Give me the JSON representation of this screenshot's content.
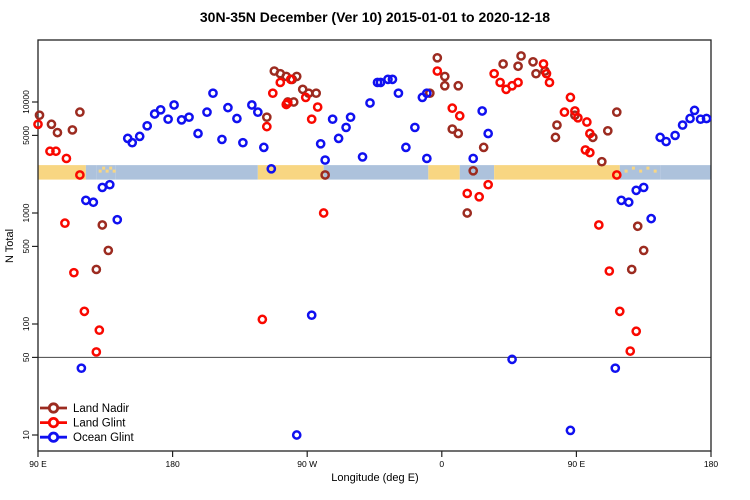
{
  "chart_data": {
    "type": "scatter",
    "title": "30N-35N December (Ver 10)   2015-01-01 to 2020-12-18",
    "xlabel": "Longitude (deg E)",
    "ylabel": "N Total",
    "x_axis": {
      "range_deg": [
        90,
        540
      ],
      "wraps_longitude": true,
      "ticks": [
        {
          "label": "90 E",
          "lon": 90
        },
        {
          "label": "180",
          "lon": 180
        },
        {
          "label": "90 W",
          "lon": 270
        },
        {
          "label": "0",
          "lon": 360
        },
        {
          "label": "90 E",
          "lon": 450
        },
        {
          "label": "180",
          "lon": 540
        }
      ]
    },
    "y_axis": {
      "scale": "log",
      "ticks": [
        {
          "label": "10000",
          "value": 10000
        },
        {
          "label": "5000",
          "value": 5000
        },
        {
          "label": "1000",
          "value": 1000
        },
        {
          "label": "500",
          "value": 500
        },
        {
          "label": "100",
          "value": 100
        },
        {
          "label": "50",
          "value": 50
        },
        {
          "label": "10",
          "value": 10
        }
      ]
    },
    "reference_line": {
      "value": 50,
      "color": "#444444"
    },
    "map_strip": {
      "value_top": 2700,
      "value_bottom": 2000,
      "land_color": "#F8D682",
      "ocean_color": "#ADC2DC",
      "segments": [
        {
          "from": 90,
          "to": 122,
          "surface": "land"
        },
        {
          "from": 122,
          "to": 129,
          "surface": "ocean"
        },
        {
          "from": 129,
          "to": 142,
          "surface": "mixed"
        },
        {
          "from": 142,
          "to": 237,
          "surface": "ocean"
        },
        {
          "from": 237,
          "to": 281,
          "surface": "land"
        },
        {
          "from": 281,
          "to": 351,
          "surface": "ocean"
        },
        {
          "from": 351,
          "to": 372,
          "surface": "land"
        },
        {
          "from": 372,
          "to": 395,
          "surface": "ocean"
        },
        {
          "from": 395,
          "to": 479,
          "surface": "land"
        },
        {
          "from": 479,
          "to": 506,
          "surface": "mixed"
        },
        {
          "from": 506,
          "to": 540,
          "surface": "ocean"
        }
      ]
    },
    "legend": {
      "position": "bottom-left",
      "items": [
        {
          "label": "Land Nadir",
          "color": "#9C2B20"
        },
        {
          "label": "Land Glint",
          "color": "#F90800"
        },
        {
          "label": "Ocean Glint",
          "color": "#1010F0"
        }
      ]
    },
    "series": [
      {
        "name": "Land Nadir",
        "color": "#9C2B20",
        "points": [
          [
            91,
            7600
          ],
          [
            99,
            6300
          ],
          [
            103,
            5300
          ],
          [
            113,
            5600
          ],
          [
            118,
            8100
          ],
          [
            133,
            780
          ],
          [
            137,
            460
          ],
          [
            129,
            310
          ],
          [
            248,
            19000
          ],
          [
            252,
            18000
          ],
          [
            256,
            17000
          ],
          [
            260,
            16000
          ],
          [
            263,
            17000
          ],
          [
            267,
            13000
          ],
          [
            271,
            12000
          ],
          [
            276,
            12000
          ],
          [
            261,
            10000
          ],
          [
            257,
            10000
          ],
          [
            243,
            7300
          ],
          [
            282,
            2200
          ],
          [
            357,
            25000
          ],
          [
            362,
            17000
          ],
          [
            362,
            14000
          ],
          [
            371,
            14000
          ],
          [
            352,
            12000
          ],
          [
            367,
            5700
          ],
          [
            371,
            5200
          ],
          [
            388,
            3900
          ],
          [
            381,
            2400
          ],
          [
            377,
            1000
          ],
          [
            401,
            22000
          ],
          [
            413,
            26000
          ],
          [
            411,
            21000
          ],
          [
            421,
            23000
          ],
          [
            423,
            18000
          ],
          [
            429,
            19000
          ],
          [
            449,
            7600
          ],
          [
            437,
            6200
          ],
          [
            436,
            4800
          ],
          [
            461,
            4800
          ],
          [
            471,
            5500
          ],
          [
            477,
            8100
          ],
          [
            467,
            2900
          ],
          [
            491,
            760
          ],
          [
            495,
            460
          ],
          [
            487,
            310
          ]
        ]
      },
      {
        "name": "Land Glint",
        "color": "#F90800",
        "points": [
          [
            90,
            6300
          ],
          [
            98,
            3600
          ],
          [
            102,
            3600
          ],
          [
            109,
            3100
          ],
          [
            118,
            2200
          ],
          [
            108,
            810
          ],
          [
            114,
            290
          ],
          [
            121,
            130
          ],
          [
            131,
            88
          ],
          [
            129,
            56
          ],
          [
            240,
            110
          ],
          [
            281,
            1000
          ],
          [
            252,
            15000
          ],
          [
            247,
            12000
          ],
          [
            257,
            9800
          ],
          [
            259,
            16000
          ],
          [
            269,
            11000
          ],
          [
            273,
            7000
          ],
          [
            277,
            9000
          ],
          [
            243,
            6000
          ],
          [
            256,
            9500
          ],
          [
            357,
            19000
          ],
          [
            367,
            8800
          ],
          [
            372,
            7500
          ],
          [
            395,
            18000
          ],
          [
            399,
            15000
          ],
          [
            407,
            14000
          ],
          [
            411,
            15000
          ],
          [
            403,
            13000
          ],
          [
            377,
            1500
          ],
          [
            385,
            1400
          ],
          [
            391,
            1800
          ],
          [
            428,
            22000
          ],
          [
            430,
            18000
          ],
          [
            432,
            15000
          ],
          [
            446,
            11000
          ],
          [
            442,
            8100
          ],
          [
            449,
            8300
          ],
          [
            451,
            7200
          ],
          [
            457,
            6600
          ],
          [
            459,
            5200
          ],
          [
            456,
            3700
          ],
          [
            459,
            3500
          ],
          [
            477,
            2200
          ],
          [
            465,
            780
          ],
          [
            472,
            300
          ],
          [
            479,
            130
          ],
          [
            490,
            86
          ],
          [
            486,
            57
          ]
        ]
      },
      {
        "name": "Ocean Glint",
        "color": "#1010F0",
        "points": [
          [
            133,
            1700
          ],
          [
            138,
            1800
          ],
          [
            122,
            1300
          ],
          [
            127,
            1250
          ],
          [
            143,
            870
          ],
          [
            119,
            40
          ],
          [
            150,
            4700
          ],
          [
            153,
            4300
          ],
          [
            158,
            4900
          ],
          [
            163,
            6100
          ],
          [
            168,
            7800
          ],
          [
            172,
            8500
          ],
          [
            177,
            7000
          ],
          [
            181,
            9400
          ],
          [
            186,
            6900
          ],
          [
            191,
            7300
          ],
          [
            197,
            5200
          ],
          [
            203,
            8100
          ],
          [
            207,
            12000
          ],
          [
            217,
            8900
          ],
          [
            223,
            7100
          ],
          [
            233,
            9400
          ],
          [
            237,
            8100
          ],
          [
            213,
            4600
          ],
          [
            227,
            4300
          ],
          [
            241,
            3900
          ],
          [
            246,
            2500
          ],
          [
            273,
            120
          ],
          [
            263,
            10
          ],
          [
            279,
            4200
          ],
          [
            282,
            3000
          ],
          [
            287,
            7000
          ],
          [
            291,
            4700
          ],
          [
            296,
            5900
          ],
          [
            299,
            7300
          ],
          [
            307,
            3200
          ],
          [
            312,
            9800
          ],
          [
            317,
            15000
          ],
          [
            319,
            15000
          ],
          [
            324,
            16000
          ],
          [
            327,
            16000
          ],
          [
            331,
            12000
          ],
          [
            347,
            11000
          ],
          [
            350,
            12000
          ],
          [
            342,
            5900
          ],
          [
            336,
            3900
          ],
          [
            350,
            3100
          ],
          [
            387,
            8300
          ],
          [
            391,
            5200
          ],
          [
            381,
            3100
          ],
          [
            407,
            48
          ],
          [
            480,
            1300
          ],
          [
            485,
            1250
          ],
          [
            490,
            1600
          ],
          [
            495,
            1700
          ],
          [
            500,
            890
          ],
          [
            476,
            40
          ],
          [
            446,
            11
          ],
          [
            506,
            4800
          ],
          [
            510,
            4400
          ],
          [
            516,
            5000
          ],
          [
            521,
            6200
          ],
          [
            526,
            7100
          ],
          [
            529,
            8400
          ],
          [
            533,
            7000
          ],
          [
            537,
            7100
          ]
        ]
      }
    ]
  }
}
